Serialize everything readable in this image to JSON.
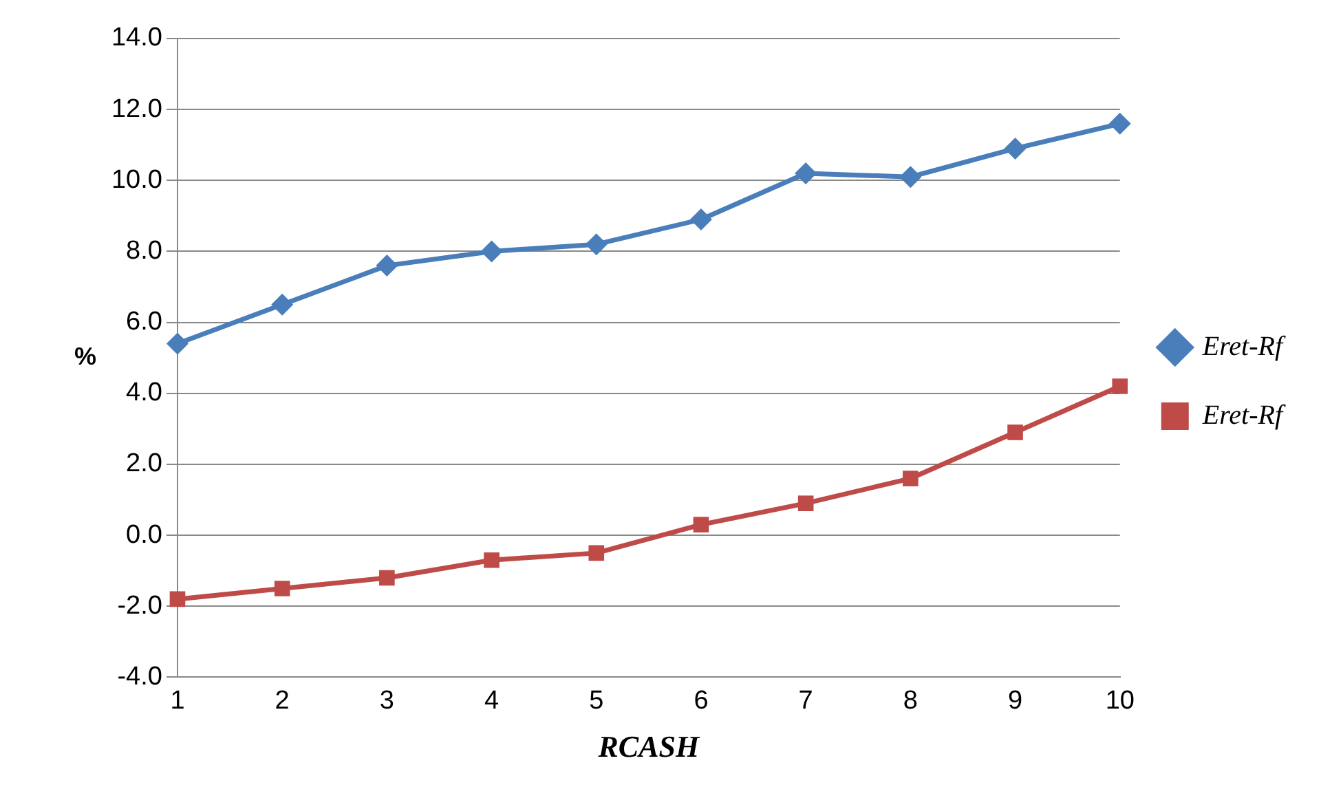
{
  "chart_data": {
    "type": "line",
    "xlabel": "RCASH",
    "ylabel": "%",
    "categories": [
      "1",
      "2",
      "3",
      "4",
      "5",
      "6",
      "7",
      "8",
      "9",
      "10"
    ],
    "series": [
      {
        "name": "Eret-Rf",
        "color": "#4a7ebb",
        "marker": "diamond",
        "values": [
          5.4,
          6.5,
          7.6,
          8.0,
          8.2,
          8.9,
          10.2,
          10.1,
          10.9,
          11.6
        ]
      },
      {
        "name": "Eret-Rf",
        "color": "#be4b48",
        "marker": "square",
        "values": [
          -1.8,
          -1.5,
          -1.2,
          -0.7,
          -0.5,
          0.3,
          0.9,
          1.6,
          2.9,
          4.2
        ]
      }
    ],
    "ylim": [
      -4,
      14
    ],
    "yticks": [
      {
        "value": -4,
        "label": "-4.0"
      },
      {
        "value": -2,
        "label": "-2.0"
      },
      {
        "value": 0,
        "label": "0.0"
      },
      {
        "value": 2,
        "label": "2.0"
      },
      {
        "value": 4,
        "label": "4.0"
      },
      {
        "value": 6,
        "label": "6.0"
      },
      {
        "value": 8,
        "label": "8.0"
      },
      {
        "value": 10,
        "label": "10.0"
      },
      {
        "value": 12,
        "label": "12.0"
      },
      {
        "value": 14,
        "label": "14.0"
      }
    ],
    "grid": "y",
    "legend": "right",
    "line_style": "solid"
  }
}
